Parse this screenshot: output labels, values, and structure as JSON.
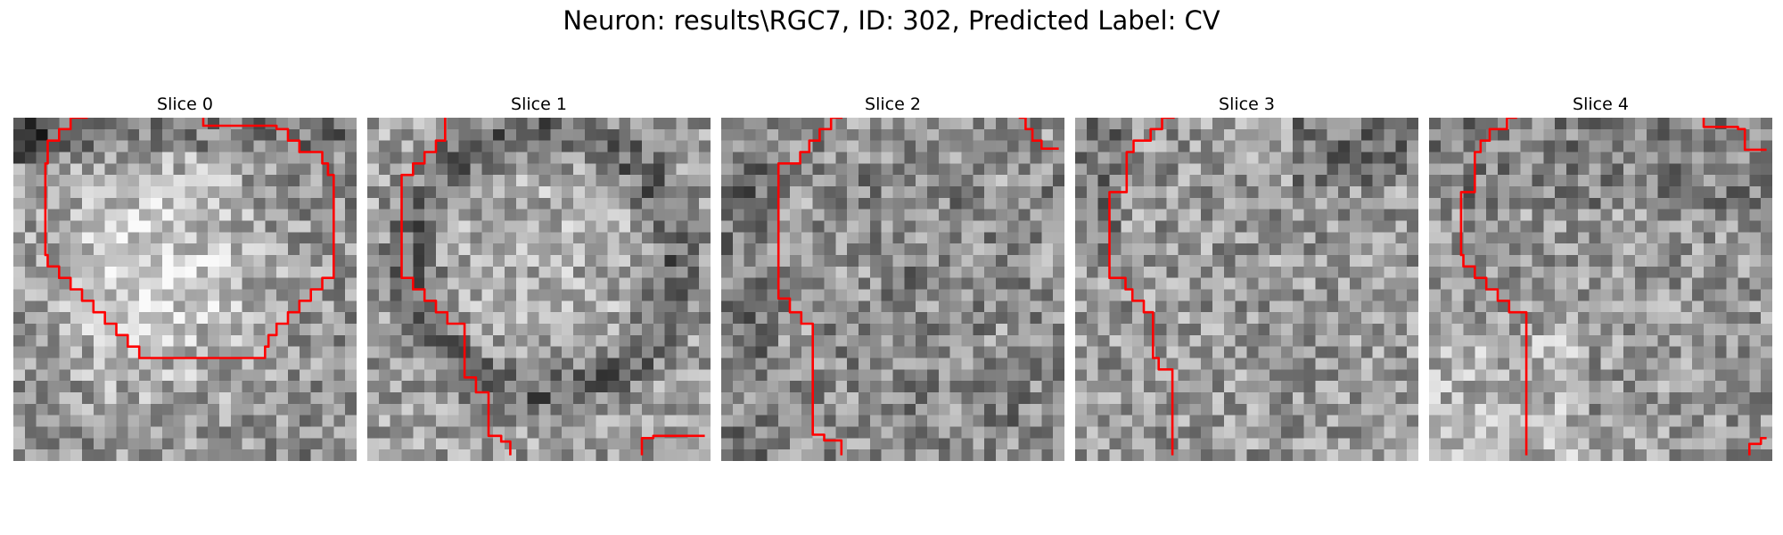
{
  "figure": {
    "title": "Neuron: results\\RGC7, ID: 302, Predicted Label: CV"
  },
  "slices": [
    {
      "title": "Slice 0"
    },
    {
      "title": "Slice 1"
    },
    {
      "title": "Slice 2"
    },
    {
      "title": "Slice 3"
    },
    {
      "title": "Slice 4"
    }
  ],
  "contour_color": "#ff0000"
}
